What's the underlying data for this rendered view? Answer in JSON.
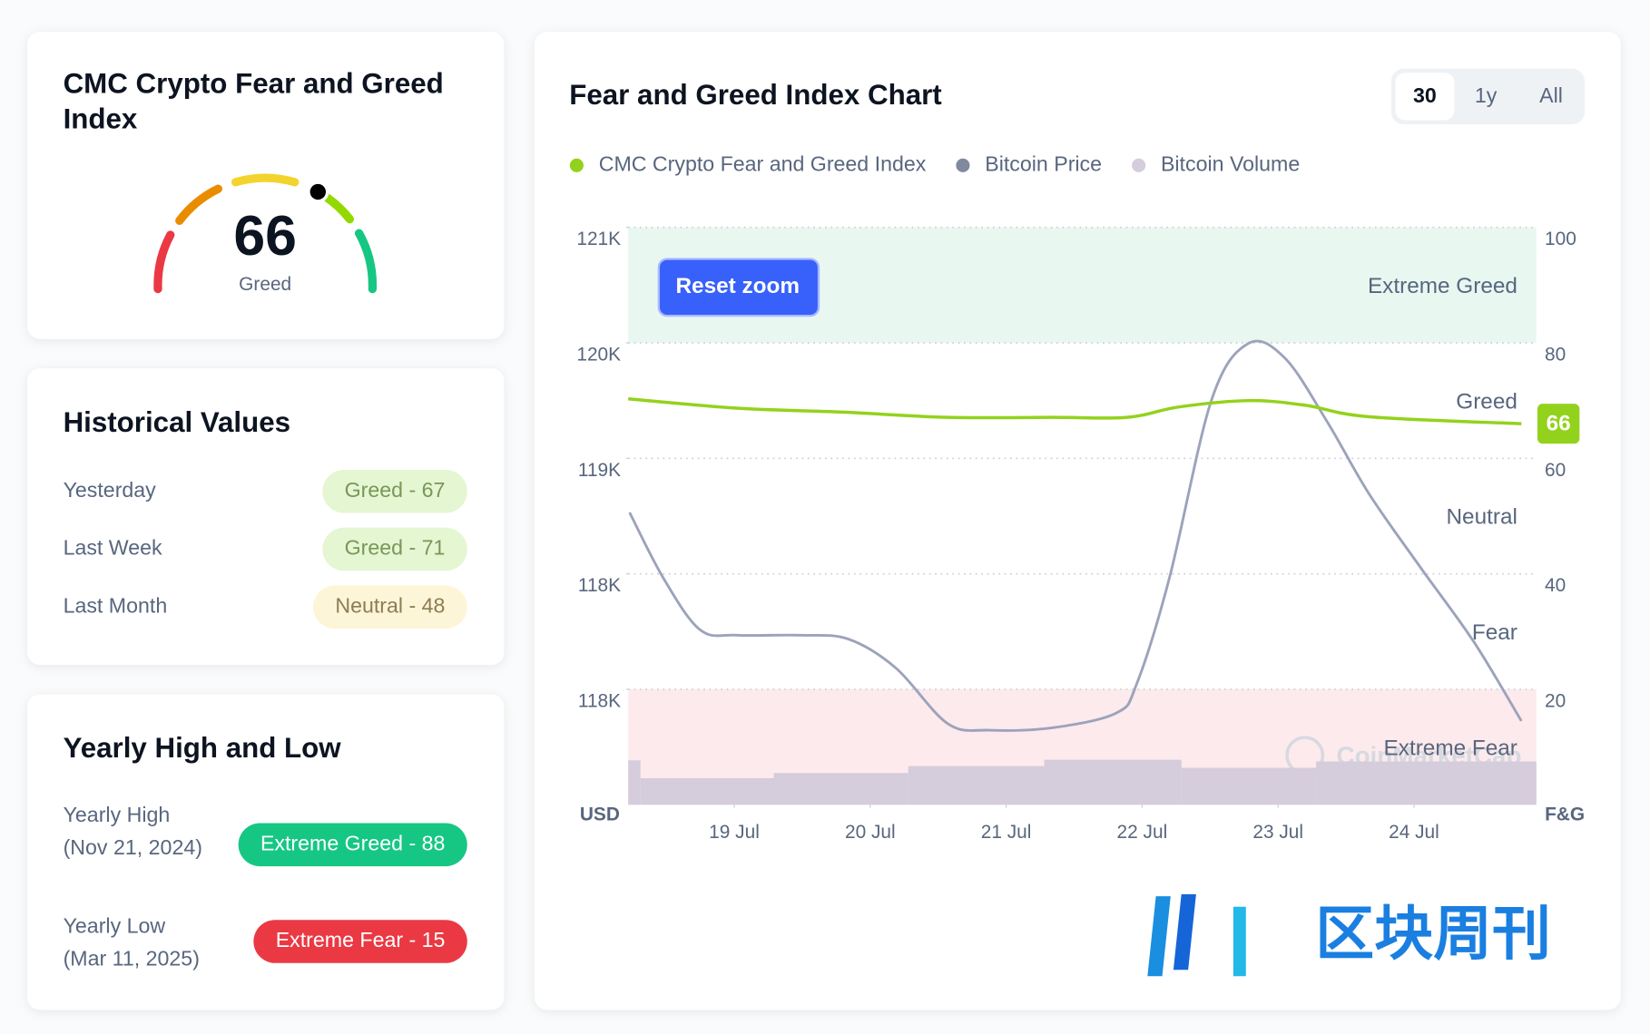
{
  "gauge": {
    "title": "CMC Crypto Fear and Greed Index",
    "value": 66,
    "label": "Greed"
  },
  "historical": {
    "title": "Historical Values",
    "rows": [
      {
        "label": "Yesterday",
        "value": "Greed - 67"
      },
      {
        "label": "Last Week",
        "value": "Greed - 71"
      },
      {
        "label": "Last Month",
        "value": "Neutral - 48"
      }
    ]
  },
  "yearly": {
    "title": "Yearly High and Low",
    "rows": [
      {
        "label": "Yearly High",
        "date": "(Nov 21, 2024)",
        "value": "Extreme Greed - 88"
      },
      {
        "label": "Yearly Low",
        "date": "(Mar 11, 2025)",
        "value": "Extreme Fear - 15"
      }
    ]
  },
  "chart_data": {
    "type": "line",
    "title": "Fear and Greed Index Chart",
    "range_buttons": [
      "30",
      "1y",
      "All"
    ],
    "reset_button": "Reset zoom",
    "ylabel": "USD",
    "y2label": "F&G",
    "xlim": [
      18.22,
      24.9
    ],
    "xticks": [
      {
        "value": 19,
        "label": "19 Jul"
      },
      {
        "value": 20,
        "label": "20 Jul"
      },
      {
        "value": 21,
        "label": "21 Jul"
      },
      {
        "value": 22,
        "label": "22 Jul"
      },
      {
        "value": 23,
        "label": "23 Jul"
      },
      {
        "value": 24,
        "label": "24 Jul"
      }
    ],
    "ylim": [
      116625,
      121000
    ],
    "yticks": [
      {
        "value": 121000,
        "label": "121K"
      },
      {
        "value": 120125,
        "label": "120K"
      },
      {
        "value": 119250,
        "label": "119K"
      },
      {
        "value": 118375,
        "label": "118K"
      },
      {
        "value": 117500,
        "label": "118K"
      }
    ],
    "y2lim": [
      0,
      100
    ],
    "y2ticks": [
      100,
      80,
      60,
      40,
      20
    ],
    "grid": true,
    "zones": [
      "Extreme Greed",
      "Greed",
      "Neutral",
      "Fear",
      "Extreme Fear"
    ],
    "series": [
      {
        "name": "CMC Crypto Fear and Greed Index",
        "color": "#93d21c",
        "axis": "y2",
        "x": [
          18.22,
          19.02,
          19.8,
          20.57,
          21.35,
          21.89,
          22.27,
          22.78,
          23.2,
          23.67,
          24.79
        ],
        "values": [
          70.3,
          68.7,
          68.0,
          67.1,
          67.1,
          67.1,
          68.9,
          70.0,
          69.2,
          67.2,
          66
        ]
      },
      {
        "name": "Bitcoin Price",
        "color": "#9ca3bb",
        "x": [
          18.23,
          18.48,
          18.75,
          19.02,
          19.49,
          19.84,
          20.19,
          20.57,
          20.88,
          21.35,
          21.81,
          21.96,
          22.2,
          22.51,
          22.78,
          23.05,
          23.36,
          23.67,
          24.05,
          24.44,
          24.79
        ],
        "values": [
          118840,
          118340,
          117950,
          117910,
          117910,
          117880,
          117660,
          117240,
          117190,
          117210,
          117320,
          117540,
          118340,
          119690,
          120120,
          120010,
          119530,
          118980,
          118420,
          117860,
          117260
        ]
      },
      {
        "name": "Bitcoin Volume",
        "color": "#d5ccdc",
        "type": "bar",
        "axis": "y2",
        "x": [
          18.22,
          18.31,
          19.29,
          20.28,
          21.28,
          22.29,
          23.28
        ],
        "values": [
          7.7,
          4.6,
          5.5,
          6.7,
          7.8,
          6.4,
          7.5
        ]
      }
    ],
    "watermark": "CoinMarketCap"
  },
  "watermark": "区块周刊"
}
